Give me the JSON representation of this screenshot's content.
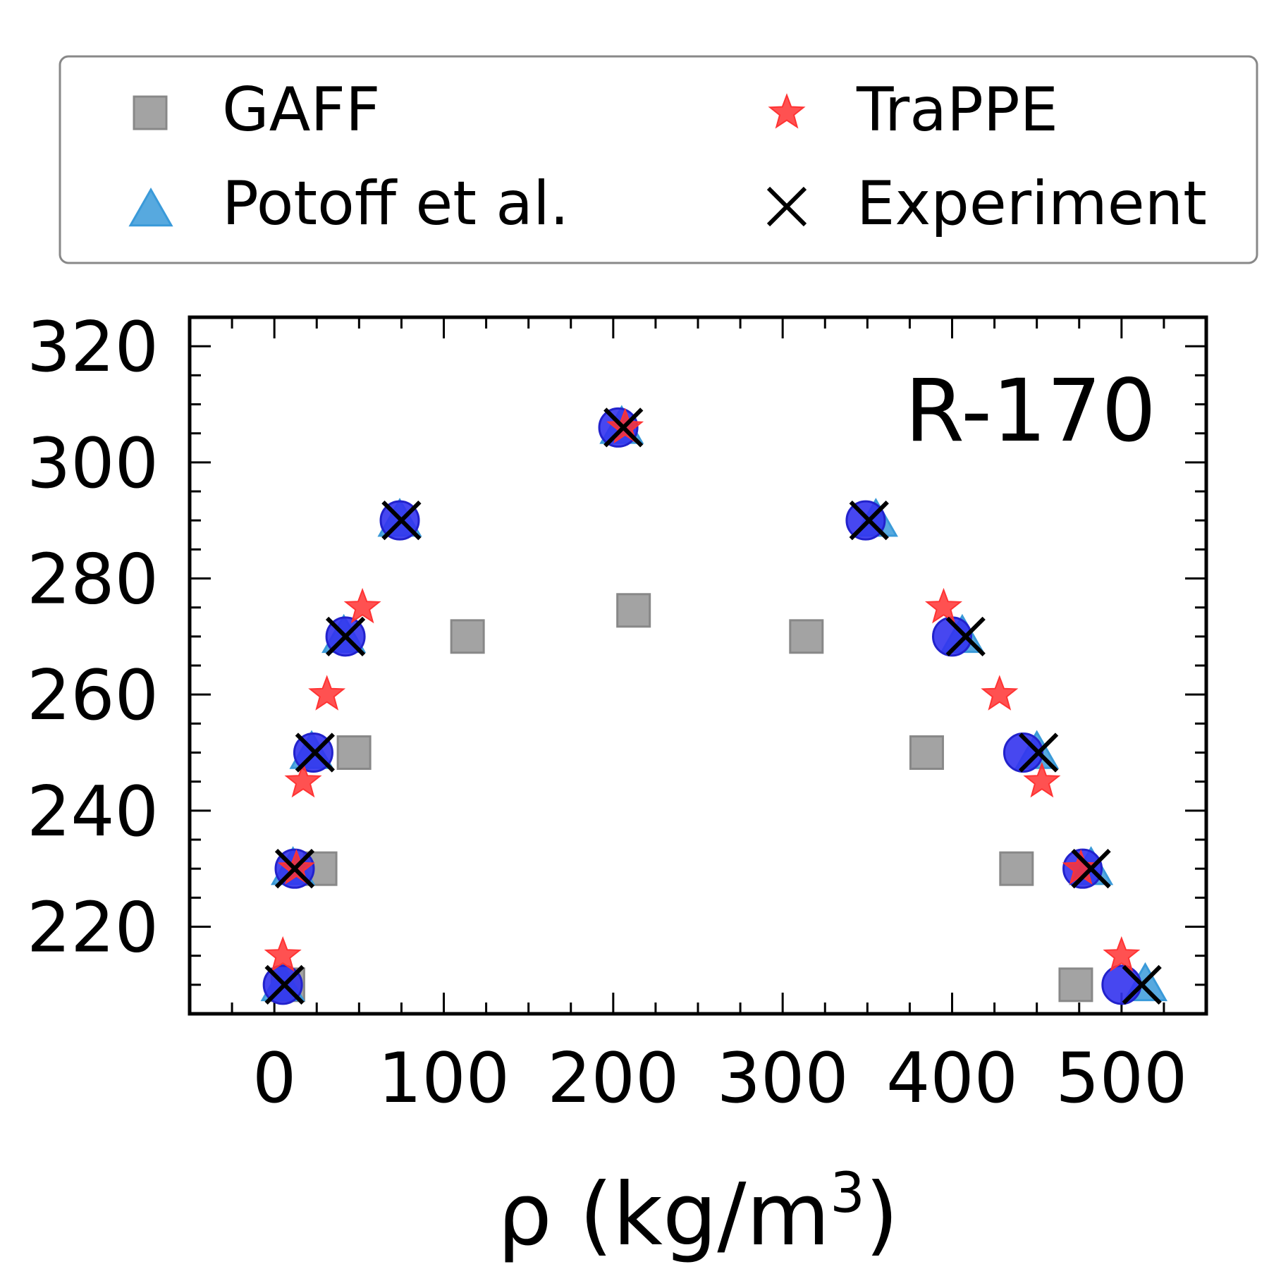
{
  "chart_data": {
    "type": "scatter",
    "title": "",
    "annotation": "R-170",
    "xlabel_main": "ρ (kg/m",
    "xlabel_sup": "3",
    "xlabel_close": ")",
    "ylabel": "",
    "xlim": [
      -50,
      550
    ],
    "ylim": [
      205,
      325
    ],
    "xticks": [
      0,
      100,
      200,
      300,
      400,
      500
    ],
    "xtick_labels": [
      "0",
      "100",
      "200",
      "300",
      "400",
      "500"
    ],
    "yticks": [
      220,
      240,
      260,
      280,
      300,
      320
    ],
    "ytick_labels": [
      "220",
      "240",
      "260",
      "280",
      "300",
      "320"
    ],
    "x_minor_step": 25,
    "y_minor_step": 5,
    "grid": false,
    "legend_position": "above plot",
    "series": [
      {
        "name": "GAFF",
        "marker": "square",
        "color": "#999999",
        "points": [
          [
            8,
            210
          ],
          [
            27,
            230
          ],
          [
            47,
            250
          ],
          [
            114,
            270
          ],
          [
            212,
            274.5
          ],
          [
            314,
            270
          ],
          [
            385,
            250
          ],
          [
            438,
            230
          ],
          [
            473,
            210
          ]
        ]
      },
      {
        "name": "Potoff et al.",
        "marker": "triangle",
        "color": "#3a9ad9",
        "points": [
          [
            5,
            210
          ],
          [
            11,
            230
          ],
          [
            22,
            250
          ],
          [
            41,
            270
          ],
          [
            74,
            290
          ],
          [
            205,
            306
          ],
          [
            355,
            290
          ],
          [
            406,
            270
          ],
          [
            450,
            250
          ],
          [
            482,
            230
          ],
          [
            514,
            210
          ]
        ]
      },
      {
        "name": "",
        "marker": "circle",
        "color": "#3333ee",
        "points": [
          [
            5,
            210
          ],
          [
            12,
            230
          ],
          [
            23,
            250
          ],
          [
            42,
            270
          ],
          [
            74,
            290
          ],
          [
            203,
            306
          ],
          [
            349,
            290
          ],
          [
            400,
            270
          ],
          [
            442,
            250
          ],
          [
            477,
            230
          ],
          [
            500,
            210
          ]
        ]
      },
      {
        "name": "TraPPE",
        "marker": "star",
        "color": "#ff3333",
        "points": [
          [
            5,
            215
          ],
          [
            13,
            230
          ],
          [
            17,
            245
          ],
          [
            31,
            260
          ],
          [
            52,
            275
          ],
          [
            207,
            306
          ],
          [
            395,
            275
          ],
          [
            428,
            260
          ],
          [
            453,
            245
          ],
          [
            476,
            230
          ],
          [
            500,
            215
          ]
        ]
      },
      {
        "name": "Experiment",
        "marker": "x",
        "color": "#000000",
        "points": [
          [
            6,
            210
          ],
          [
            12,
            230
          ],
          [
            24,
            250
          ],
          [
            42,
            270
          ],
          [
            75,
            290
          ],
          [
            206,
            306
          ],
          [
            351,
            290
          ],
          [
            408,
            270
          ],
          [
            451,
            250
          ],
          [
            482,
            230
          ],
          [
            512,
            210
          ]
        ]
      }
    ]
  }
}
